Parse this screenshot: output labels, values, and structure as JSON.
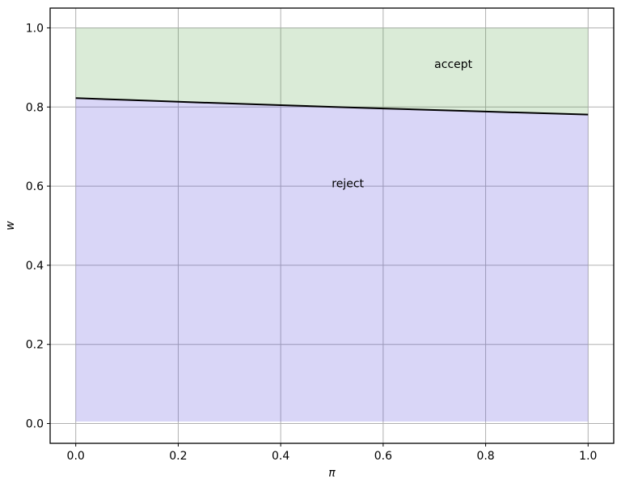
{
  "figure": {
    "background": "#ffffff"
  },
  "chart_data": {
    "type": "area",
    "title": "",
    "description": "Accept/reject decision regions separated by a downward-sloping reservation-wage boundary w(pi)",
    "xlabel": "π",
    "ylabel": "w",
    "xlim": [
      -0.05,
      1.05
    ],
    "ylim": [
      -0.05,
      1.05
    ],
    "xticks": [
      0.0,
      0.2,
      0.4,
      0.6,
      0.8,
      1.0
    ],
    "yticks": [
      0.0,
      0.2,
      0.4,
      0.6,
      0.8,
      1.0
    ],
    "xtick_labels": [
      "0.0",
      "0.2",
      "0.4",
      "0.6",
      "0.8",
      "1.0"
    ],
    "ytick_labels": [
      "0.0",
      "0.2",
      "0.4",
      "0.6",
      "0.8",
      "1.0"
    ],
    "grid": true,
    "grid_color": "#b0b0b0",
    "frame_color": "#000000",
    "tick_color": "#000000",
    "tick_fontsize": 14,
    "label_fontsize": 14,
    "boundary_line": {
      "name": "reservation-wage-boundary",
      "color": "#000000",
      "width": 2,
      "x": [
        0.0,
        0.1,
        0.2,
        0.3,
        0.4,
        0.5,
        0.6,
        0.7,
        0.8,
        0.9,
        1.0
      ],
      "y": [
        0.8225,
        0.8179,
        0.8133,
        0.8089,
        0.8046,
        0.8004,
        0.7963,
        0.7923,
        0.7884,
        0.7847,
        0.781
      ]
    },
    "regions": [
      {
        "name": "accept",
        "label": "accept",
        "label_x": 0.737,
        "label_y": 0.909,
        "fill": "rgba(60,150,40,0.19)",
        "from": "line",
        "to": 1.0
      },
      {
        "name": "reject",
        "label": "reject",
        "label_x": 0.531,
        "label_y": 0.607,
        "fill": "rgba(80,70,220,0.22)",
        "from": 0.005,
        "to": "line"
      }
    ]
  }
}
